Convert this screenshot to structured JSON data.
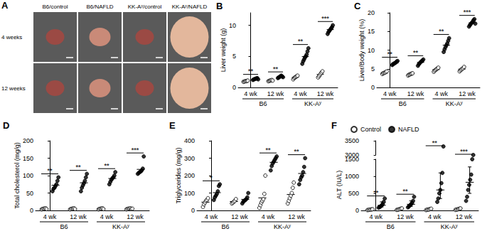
{
  "image_panel": {
    "panel_label": "A",
    "column_labels": [
      "B6/control",
      "B6/NAFLD",
      "KK-Aʸ/control",
      "KK-Aʸ/NAFLD"
    ],
    "row_labels": [
      "4 weeks",
      "12 weeks"
    ]
  },
  "chart_data": [
    {
      "type": "scatter",
      "panel_label": "B",
      "y_label": "Liver weight (g)",
      "categories": [
        "4 wk",
        "12 wk",
        "4 wk",
        "12 wk"
      ],
      "group_labels": [
        "B6",
        "KK-Aʸ"
      ],
      "ylim": [
        0,
        12
      ],
      "yticks": [
        0,
        5,
        10
      ],
      "grid": false,
      "significance": [
        "**",
        "**",
        "**",
        "***"
      ],
      "series": [
        {
          "name": "Control",
          "color": "#000000",
          "marker": "open",
          "values": [
            [
              0.9,
              0.95,
              1.0,
              1.0,
              1.05,
              1.1
            ],
            [
              1.0,
              1.05,
              1.1,
              1.15,
              1.2,
              1.1
            ],
            [
              1.3,
              1.5,
              1.6,
              1.7,
              1.8,
              1.9
            ],
            [
              1.6,
              1.8,
              2.0,
              2.2,
              2.4,
              2.6
            ]
          ],
          "means": [
            1.0,
            1.1,
            1.63,
            2.1
          ]
        },
        {
          "name": "NAFLD",
          "color": "#000000",
          "marker": "filled",
          "values": [
            [
              1.2,
              1.3,
              1.35,
              1.4,
              1.45,
              1.5,
              1.3
            ],
            [
              1.5,
              1.6,
              1.7,
              1.8,
              1.9,
              1.75,
              1.65
            ],
            [
              3.8,
              4.2,
              4.5,
              4.8,
              5.0,
              5.3,
              5.8,
              6.3
            ],
            [
              8.6,
              8.9,
              9.1,
              9.3,
              9.5,
              9.7,
              10.0
            ]
          ],
          "means": [
            1.36,
            1.7,
            4.96,
            9.3
          ]
        }
      ]
    },
    {
      "type": "scatter",
      "panel_label": "C",
      "y_label": "Liver/Body weight (%)",
      "categories": [
        "4 wk",
        "12 wk",
        "4 wk",
        "12 wk"
      ],
      "group_labels": [
        "B6",
        "KK-Aʸ"
      ],
      "ylim": [
        0,
        20
      ],
      "yticks": [
        0,
        5,
        10,
        15,
        20
      ],
      "grid": false,
      "significance": [
        "**",
        "**",
        "**",
        "***"
      ],
      "series": [
        {
          "name": "Control",
          "color": "#000000",
          "marker": "open",
          "values": [
            [
              3.6,
              3.8,
              3.9,
              4.0,
              4.1,
              4.3
            ],
            [
              3.2,
              3.4,
              3.5,
              3.6,
              3.7,
              3.8
            ],
            [
              4.2,
              4.5,
              4.7,
              4.9,
              5.1,
              5.3
            ],
            [
              4.3,
              4.6,
              4.8,
              5.0,
              5.2,
              5.5
            ]
          ],
          "means": [
            3.95,
            3.53,
            4.78,
            4.9
          ]
        },
        {
          "name": "NAFLD",
          "color": "#000000",
          "marker": "filled",
          "values": [
            [
              6.0,
              6.2,
              6.4,
              6.5,
              6.7,
              6.9,
              7.1
            ],
            [
              5.8,
              6.2,
              6.5,
              6.8,
              7.0,
              7.2,
              7.5
            ],
            [
              9.5,
              10.2,
              10.8,
              11.3,
              11.8,
              12.5,
              13.2
            ],
            [
              16.3,
              16.7,
              17.0,
              17.3,
              17.6,
              18.0,
              18.3,
              17.1
            ]
          ],
          "means": [
            6.54,
            6.71,
            11.33,
            17.29
          ]
        }
      ]
    },
    {
      "type": "scatter",
      "panel_label": "D",
      "y_label": "Total cholesterol (mg/g)",
      "categories": [
        "4 wk",
        "12 wk",
        "4 wk",
        "12 wk"
      ],
      "group_labels": [
        "B6",
        "KK-Aʸ"
      ],
      "ylim": [
        0,
        200
      ],
      "yticks": [
        0,
        50,
        100,
        150,
        200
      ],
      "grid": false,
      "significance": [
        "**",
        "**",
        "**",
        "***"
      ],
      "series": [
        {
          "name": "Control",
          "color": "#000000",
          "marker": "open",
          "values": [
            [
              3,
              4,
              5,
              5,
              6,
              4
            ],
            [
              3,
              4,
              5,
              5,
              6,
              4
            ],
            [
              3,
              4,
              5,
              5,
              6,
              4
            ],
            [
              3,
              4,
              5,
              5,
              6,
              4,
              5
            ]
          ],
          "means": [
            4.5,
            4.5,
            4.5,
            4.57
          ]
        },
        {
          "name": "NAFLD",
          "color": "#000000",
          "marker": "filled",
          "values": [
            [
              55,
              62,
              65,
              70,
              75,
              85,
              95
            ],
            [
              55,
              65,
              72,
              78,
              85,
              95,
              105
            ],
            [
              75,
              82,
              88,
              92,
              95,
              100,
              110
            ],
            [
              105,
              108,
              110,
              112,
              115,
              120,
              155
            ]
          ],
          "means": [
            72.4,
            79.3,
            91.7,
            117.9
          ]
        }
      ]
    },
    {
      "type": "scatter",
      "panel_label": "E",
      "y_label": "Triglycerides (mg/g)",
      "categories": [
        "4 wk",
        "12 wk",
        "4 wk",
        "12 wk"
      ],
      "group_labels": [
        "B6",
        "KK-Aʸ"
      ],
      "ylim": [
        0,
        400
      ],
      "yticks": [
        0,
        100,
        200,
        300,
        400
      ],
      "grid": false,
      "significance": [
        "*",
        null,
        "**",
        "**"
      ],
      "series": [
        {
          "name": "Control",
          "color": "#000000",
          "marker": "open",
          "values": [
            [
              20,
              35,
              45,
              55,
              60,
              70
            ],
            [
              40,
              45,
              50,
              55,
              65
            ],
            [
              15,
              30,
              45,
              55,
              65,
              95,
              200
            ],
            [
              40,
              55,
              70,
              85,
              100,
              130,
              160
            ]
          ],
          "means": [
            47.5,
            51,
            72.1,
            91.4
          ]
        },
        {
          "name": "NAFLD",
          "color": "#000000",
          "marker": "filled",
          "values": [
            [
              60,
              75,
              85,
              95,
              110,
              140,
              150
            ],
            [
              40,
              50,
              55,
              60,
              65,
              75,
              100
            ],
            [
              230,
              255,
              270,
              280,
              290,
              300,
              310
            ],
            [
              150,
              175,
              190,
              200,
              220,
              250,
              300
            ]
          ],
          "means": [
            102.1,
            63.6,
            276.4,
            212.1
          ]
        }
      ]
    },
    {
      "type": "scatter",
      "panel_label": "F",
      "y_label": "ALT (IU/L)",
      "categories": [
        "4 wk",
        "12 wk",
        "4 wk",
        "12 wk"
      ],
      "group_labels": [
        "B6",
        "KK-Aʸ"
      ],
      "ylim": [
        0,
        3500
      ],
      "yticks": [
        0,
        500,
        1000,
        1500,
        3000,
        3500
      ],
      "axis_break": [
        1500,
        3000
      ],
      "grid": false,
      "legend": "top left",
      "significance": [
        "**",
        "**",
        "**",
        "***"
      ],
      "series": [
        {
          "name": "Control",
          "color": "#000000",
          "marker": "open",
          "values": [
            [
              10,
              15,
              20,
              25,
              30,
              35
            ],
            [
              15,
              20,
              30,
              40,
              50,
              60
            ],
            [
              10,
              20,
              25,
              30,
              40,
              50
            ],
            [
              15,
              25,
              30,
              40,
              50,
              60
            ]
          ],
          "medians": [
            22.5,
            35,
            27.5,
            35
          ],
          "error_low": [
            15,
            20,
            20,
            25
          ],
          "error_high": [
            30,
            50,
            40,
            50
          ]
        },
        {
          "name": "NAFLD",
          "color": "#000000",
          "marker": "filled",
          "values": [
            [
              80,
              100,
              120,
              150,
              180,
              250,
              350
            ],
            [
              90,
              120,
              150,
              180,
              220,
              280,
              400
            ],
            [
              250,
              350,
              500,
              600,
              800,
              1100,
              3300
            ],
            [
              280,
              400,
              600,
              750,
              900,
              1050,
              1500,
              3000
            ]
          ],
          "medians": [
            150,
            180,
            600,
            825
          ],
          "error_low": [
            100,
            120,
            350,
            500
          ],
          "error_high": [
            250,
            280,
            1100,
            1275
          ]
        }
      ]
    }
  ]
}
